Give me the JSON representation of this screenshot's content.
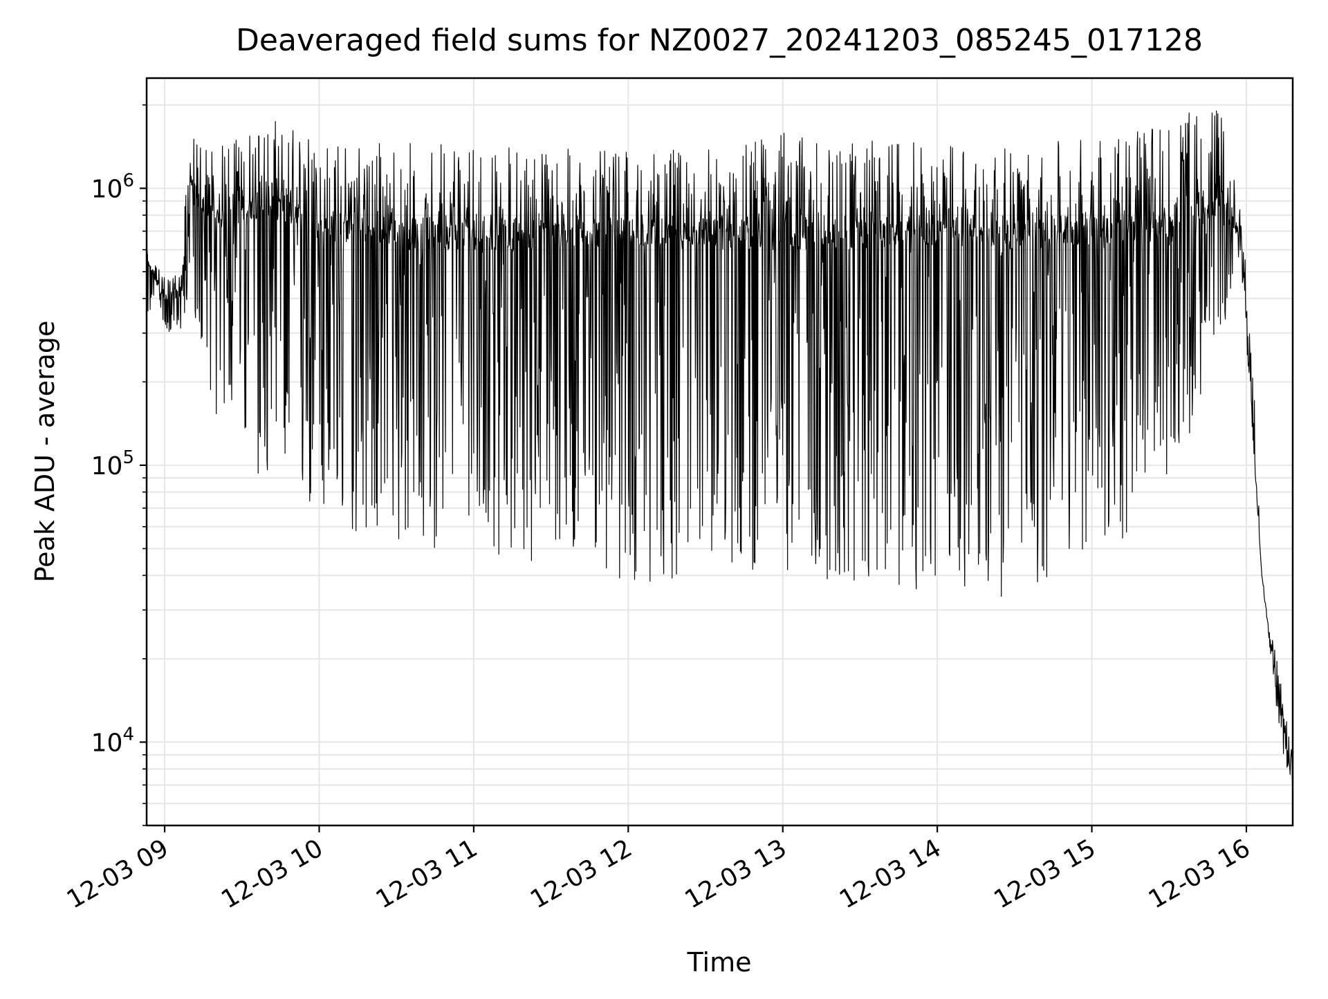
{
  "chart_data": {
    "type": "line",
    "title": "Deaveraged field sums for NZ0027_20241203_085245_017128",
    "xlabel": "Time",
    "ylabel": "Peak ADU - average",
    "y_scale": "log",
    "ylim": [
      5000,
      2500000
    ],
    "xlim": [
      "2024-12-03 08:53",
      "2024-12-03 16:18"
    ],
    "grid": true,
    "line_color": "#000000",
    "x_ticks": [
      "2024-12-03 09:00",
      "2024-12-03 10:00",
      "2024-12-03 11:00",
      "2024-12-03 12:00",
      "2024-12-03 13:00",
      "2024-12-03 14:00",
      "2024-12-03 15:00",
      "2024-12-03 16:00"
    ],
    "x_tick_labels": [
      "12-03 09",
      "12-03 10",
      "12-03 11",
      "12-03 12",
      "12-03 13",
      "12-03 14",
      "12-03 15",
      "12-03 16"
    ],
    "y_ticks": [
      10000,
      100000,
      1000000
    ],
    "y_tick_labels": [
      {
        "base": "10",
        "exp": "4"
      },
      {
        "base": "10",
        "exp": "5"
      },
      {
        "base": "10",
        "exp": "6"
      }
    ],
    "series": [
      {
        "x": [
          "2024-12-03 08:53",
          "2024-12-03 09:00",
          "2024-12-03 09:06",
          "2024-12-03 09:10",
          "2024-12-03 09:20",
          "2024-12-03 09:40",
          "2024-12-03 10:00",
          "2024-12-03 10:30",
          "2024-12-03 11:00",
          "2024-12-03 11:30",
          "2024-12-03 12:00",
          "2024-12-03 12:30",
          "2024-12-03 13:00",
          "2024-12-03 13:30",
          "2024-12-03 14:00",
          "2024-12-03 14:30",
          "2024-12-03 15:00",
          "2024-12-03 15:30",
          "2024-12-03 15:50",
          "2024-12-03 15:58",
          "2024-12-03 16:02",
          "2024-12-03 16:06",
          "2024-12-03 16:10",
          "2024-12-03 16:14",
          "2024-12-03 16:18"
        ],
        "y": [
          550000,
          380000,
          400000,
          900000,
          700000,
          800000,
          650000,
          600000,
          600000,
          600000,
          620000,
          600000,
          600000,
          600000,
          620000,
          600000,
          620000,
          650000,
          800000,
          650000,
          150000,
          40000,
          20000,
          12000,
          7000
        ],
        "y_high": [
          600000,
          480000,
          500000,
          1600000,
          1400000,
          1800000,
          1550000,
          1500000,
          1500000,
          1400000,
          1350000,
          1400000,
          1600000,
          1500000,
          1450000,
          1400000,
          1550000,
          1800000,
          2000000,
          800000,
          300000,
          40000,
          25000,
          15000,
          9000
        ],
        "y_low": [
          350000,
          300000,
          300000,
          400000,
          150000,
          80000,
          60000,
          50000,
          50000,
          42000,
          35000,
          40000,
          42000,
          35000,
          35000,
          33000,
          42000,
          75000,
          300000,
          500000,
          150000,
          40000,
          18000,
          9000,
          7000
        ]
      }
    ]
  }
}
